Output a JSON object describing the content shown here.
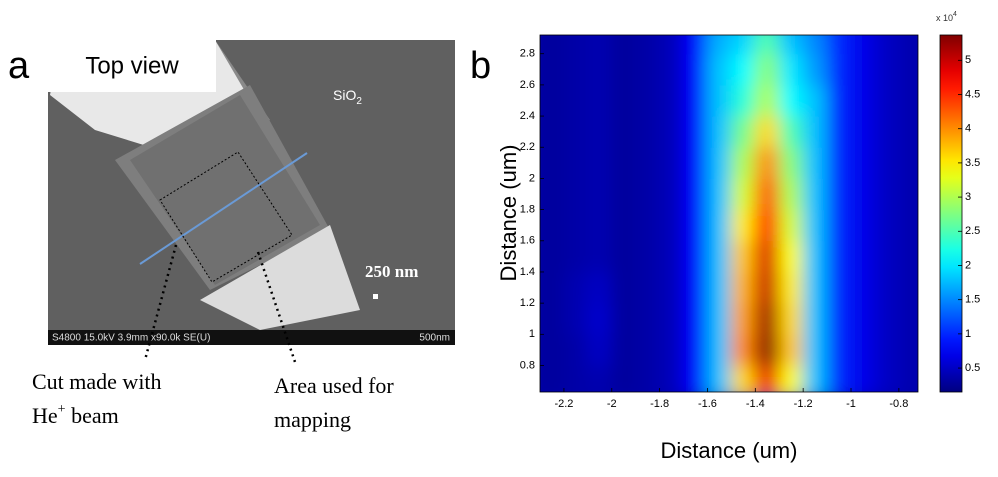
{
  "panel_a": {
    "letter": "a",
    "view_label": "Top view",
    "material": "SiO",
    "material_sub": "2",
    "scale_label": "250 nm",
    "sem_info": "S4800 15.0kV 3.9mm x90.0k SE(U)",
    "sem_scale": "500nm",
    "cut_label_1": "Cut made with",
    "cut_label_2": "He",
    "cut_label_2_sup": "+",
    "cut_label_2_rest": " beam",
    "area_label_1": "Area used for",
    "area_label_2": "mapping"
  },
  "chart_data": {
    "type": "heatmap",
    "panel_letter": "b",
    "x_label": "Distance (um)",
    "y_label": "Distance (um)",
    "x": [
      -2.25,
      -2.15,
      -2.05,
      -1.95,
      -1.85,
      -1.75,
      -1.65,
      -1.55,
      -1.45,
      -1.35,
      -1.25,
      -1.15,
      -1.05,
      -0.95,
      -0.85,
      -0.75
    ],
    "y": [
      0.7,
      0.9,
      1.1,
      1.3,
      1.5,
      1.7,
      1.9,
      2.1,
      2.3,
      2.5,
      2.7,
      2.9
    ],
    "z": [
      [
        0.3,
        0.35,
        0.4,
        0.3,
        0.35,
        0.45,
        0.8,
        1.8,
        3.6,
        4.8,
        3.4,
        1.8,
        1.0,
        0.7,
        0.5,
        0.4
      ],
      [
        0.3,
        0.35,
        0.5,
        0.3,
        0.35,
        0.45,
        0.8,
        1.8,
        4.0,
        5.3,
        3.7,
        1.8,
        1.0,
        0.7,
        0.5,
        0.4
      ],
      [
        0.3,
        0.4,
        0.55,
        0.3,
        0.35,
        0.45,
        0.8,
        1.8,
        3.9,
        5.2,
        3.6,
        1.8,
        1.0,
        0.7,
        0.5,
        0.4
      ],
      [
        0.3,
        0.4,
        0.5,
        0.3,
        0.35,
        0.45,
        0.8,
        1.8,
        3.8,
        5.0,
        3.5,
        1.8,
        1.0,
        0.7,
        0.5,
        0.4
      ],
      [
        0.3,
        0.35,
        0.4,
        0.3,
        0.35,
        0.45,
        0.8,
        1.8,
        3.7,
        4.9,
        3.4,
        1.8,
        1.0,
        0.7,
        0.5,
        0.4
      ],
      [
        0.3,
        0.35,
        0.4,
        0.3,
        0.35,
        0.45,
        0.8,
        1.8,
        3.5,
        4.6,
        3.2,
        1.8,
        1.0,
        0.7,
        0.5,
        0.4
      ],
      [
        0.3,
        0.35,
        0.4,
        0.3,
        0.35,
        0.45,
        0.8,
        1.8,
        3.2,
        4.3,
        3.0,
        1.8,
        1.0,
        0.7,
        0.5,
        0.4
      ],
      [
        0.3,
        0.35,
        0.4,
        0.3,
        0.35,
        0.45,
        0.8,
        1.8,
        3.0,
        4.0,
        2.8,
        1.8,
        1.0,
        0.7,
        0.5,
        0.4
      ],
      [
        0.3,
        0.35,
        0.4,
        0.3,
        0.35,
        0.45,
        0.8,
        1.8,
        2.7,
        3.6,
        2.5,
        1.8,
        1.0,
        0.7,
        0.5,
        0.4
      ],
      [
        0.3,
        0.35,
        0.4,
        0.3,
        0.35,
        0.45,
        0.8,
        1.8,
        2.3,
        3.0,
        2.1,
        1.8,
        1.0,
        0.7,
        0.5,
        0.4
      ],
      [
        0.3,
        0.35,
        0.4,
        0.3,
        0.35,
        0.45,
        0.8,
        1.8,
        2.1,
        2.8,
        2.0,
        1.6,
        1.0,
        0.7,
        0.5,
        0.4
      ],
      [
        0.3,
        0.35,
        0.4,
        0.3,
        0.35,
        0.45,
        0.8,
        1.7,
        1.9,
        2.5,
        1.8,
        1.5,
        1.0,
        0.7,
        0.5,
        0.4
      ]
    ],
    "xlim": [
      -2.3,
      -0.72
    ],
    "ylim": [
      0.63,
      2.92
    ],
    "xticks": [
      -2.2,
      -2,
      -1.8,
      -1.6,
      -1.4,
      -1.2,
      -1,
      -0.8
    ],
    "yticks": [
      0.8,
      1,
      1.2,
      1.4,
      1.6,
      1.8,
      2,
      2.2,
      2.4,
      2.6,
      2.8
    ],
    "zlim": [
      0.15,
      5.37
    ],
    "zticks": [
      0.5,
      1,
      1.5,
      2,
      2.5,
      3,
      3.5,
      4,
      4.5,
      5
    ],
    "colorbar_multiplier": "x 10",
    "colorbar_exponent": "4",
    "colormap": "jet",
    "grid": false
  }
}
